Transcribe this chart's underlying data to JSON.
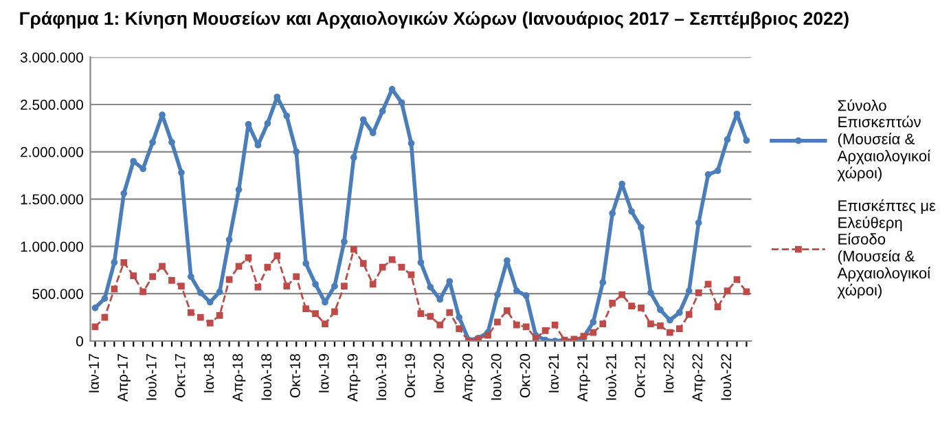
{
  "chart_data": {
    "type": "line",
    "title": "Γράφημα 1: Κίνηση Μουσείων και Αρχαιολογικών Χώρων (Ιανουάριος 2017 – Σεπτέμβριος 2022)",
    "categories": [
      "Ιαν-17",
      null,
      null,
      "Απρ-17",
      null,
      null,
      "Ιουλ-17",
      null,
      null,
      "Οκτ-17",
      null,
      null,
      "Ιαν-18",
      null,
      null,
      "Απρ-18",
      null,
      null,
      "Ιουλ-18",
      null,
      null,
      "Οκτ-18",
      null,
      null,
      "Ιαν-19",
      null,
      null,
      "Απρ-19",
      null,
      null,
      "Ιουλ-19",
      null,
      null,
      "Οκτ-19",
      null,
      null,
      "Ιαν-20",
      null,
      null,
      "Απρ-20",
      null,
      null,
      "Ιουλ-20",
      null,
      null,
      "Οκτ-20",
      null,
      null,
      "Ιαν-21",
      null,
      null,
      "Απρ-21",
      null,
      null,
      "Ιουλ-21",
      null,
      null,
      "Οκτ-21",
      null,
      null,
      "Ιαν-22",
      null,
      null,
      "Απρ-22",
      null,
      null,
      "Ιουλ-22",
      null,
      null
    ],
    "series": [
      {
        "name": "Σύνολο Επισκεπτών (Μουσεία & Αρχαιολογικοί χώροι)",
        "color": "#4a7ebb",
        "marker": "circle",
        "line_style": "solid",
        "values": [
          350000,
          450000,
          830000,
          1560000,
          1900000,
          1820000,
          2100000,
          2390000,
          2100000,
          1780000,
          680000,
          510000,
          410000,
          520000,
          1070000,
          1600000,
          2290000,
          2070000,
          2300000,
          2580000,
          2380000,
          2000000,
          820000,
          600000,
          410000,
          580000,
          1050000,
          1940000,
          2340000,
          2200000,
          2430000,
          2660000,
          2520000,
          2090000,
          830000,
          570000,
          440000,
          630000,
          250000,
          10000,
          30000,
          90000,
          490000,
          850000,
          530000,
          480000,
          60000,
          10000,
          0,
          10000,
          0,
          40000,
          200000,
          620000,
          1350000,
          1660000,
          1370000,
          1200000,
          510000,
          330000,
          220000,
          300000,
          530000,
          1250000,
          1760000,
          1800000,
          2130000,
          2400000,
          2120000
        ]
      },
      {
        "name": "Επισκέπτες με Ελεύθερη Είσοδο (Μουσεία & Αρχαιολογικοί χώροι)",
        "color": "#be4b48",
        "marker": "square",
        "line_style": "dashed",
        "values": [
          150000,
          250000,
          550000,
          830000,
          690000,
          520000,
          680000,
          790000,
          640000,
          580000,
          300000,
          250000,
          190000,
          270000,
          650000,
          790000,
          880000,
          570000,
          780000,
          900000,
          580000,
          680000,
          340000,
          290000,
          180000,
          310000,
          580000,
          970000,
          820000,
          600000,
          780000,
          860000,
          780000,
          700000,
          290000,
          260000,
          170000,
          300000,
          130000,
          0,
          20000,
          60000,
          200000,
          320000,
          170000,
          150000,
          30000,
          110000,
          170000,
          10000,
          20000,
          50000,
          90000,
          180000,
          400000,
          490000,
          370000,
          350000,
          180000,
          160000,
          90000,
          130000,
          280000,
          510000,
          600000,
          360000,
          530000,
          650000,
          520000
        ]
      }
    ],
    "ylim": [
      0,
      3000000
    ],
    "yticks": [
      0,
      {
        "value": 500000,
        "label": "500.000"
      },
      {
        "value": 1000000,
        "label": "1.000.000"
      },
      {
        "value": 1500000,
        "label": "1.500.000"
      },
      {
        "value": 2000000,
        "label": "2.000.000"
      },
      {
        "value": 2500000,
        "label": "2.500.000"
      },
      {
        "value": 3000000,
        "label": "3.000.000"
      }
    ],
    "grid": "y",
    "legend": "right"
  }
}
